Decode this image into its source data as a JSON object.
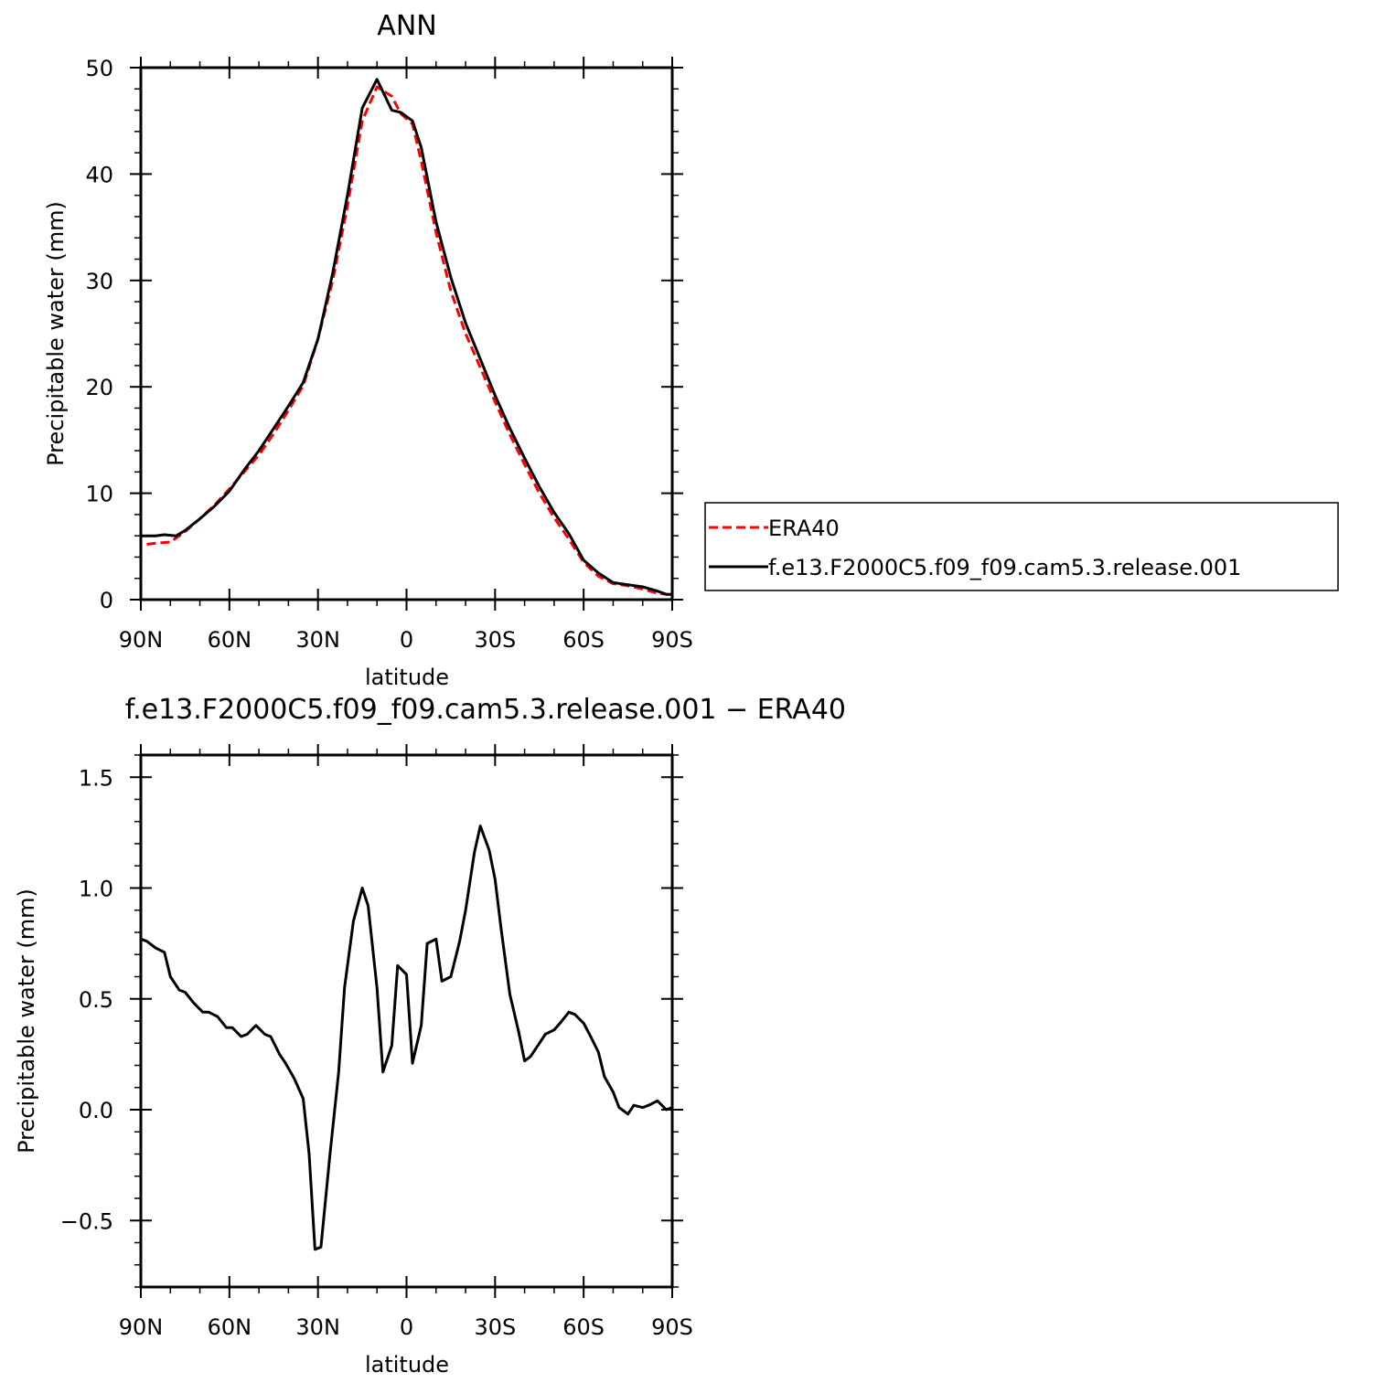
{
  "chart_data": [
    {
      "type": "line",
      "title": "ANN",
      "xlabel": "latitude",
      "ylabel": "Precipitable water (mm)",
      "xlim": [
        90,
        -90
      ],
      "ylim": [
        0,
        50
      ],
      "x_tick_values": [
        90,
        60,
        30,
        0,
        -30,
        -60,
        -90
      ],
      "x_tick_labels": [
        "90N",
        "60N",
        "30N",
        "0",
        "30S",
        "60S",
        "90S"
      ],
      "y_tick_values": [
        0,
        10,
        20,
        30,
        40,
        50
      ],
      "y_tick_labels": [
        "0",
        "10",
        "20",
        "30",
        "40",
        "50"
      ],
      "legend_position": "right",
      "series": [
        {
          "name": "ERA40",
          "color": "#ff0000",
          "dash": "dashed",
          "x": [
            88,
            85,
            80,
            75,
            70,
            65,
            60,
            55,
            50,
            45,
            40,
            35,
            30,
            25,
            20,
            15,
            10,
            5,
            2,
            -2,
            -5,
            -10,
            -15,
            -20,
            -25,
            -30,
            -35,
            -40,
            -45,
            -50,
            -55,
            -60,
            -65,
            -70,
            -75,
            -80,
            -85,
            -88,
            -90
          ],
          "y": [
            5.2,
            5.3,
            5.4,
            6.4,
            7.6,
            8.9,
            10.4,
            12.0,
            13.6,
            15.6,
            17.8,
            20.1,
            24.5,
            30.0,
            37.0,
            45.0,
            48.2,
            47.3,
            45.7,
            44.7,
            41.2,
            34.5,
            29.0,
            25.0,
            21.8,
            18.6,
            15.5,
            12.7,
            10.0,
            7.7,
            5.7,
            3.5,
            2.2,
            1.5,
            1.3,
            1.0,
            0.6,
            0.5,
            0.5
          ]
        },
        {
          "name": "f.e13.F2000C5.f09_f09.cam5.3.release.001",
          "color": "#000000",
          "dash": "solid",
          "x": [
            90,
            85,
            82,
            78,
            75,
            70,
            65,
            60,
            55,
            50,
            45,
            40,
            35,
            30,
            25,
            20,
            15,
            10,
            5,
            2,
            -2,
            -5,
            -10,
            -15,
            -20,
            -25,
            -30,
            -35,
            -40,
            -45,
            -50,
            -55,
            -60,
            -65,
            -70,
            -75,
            -80,
            -85,
            -88,
            -90
          ],
          "y": [
            6.0,
            6.0,
            6.1,
            6.0,
            6.5,
            7.6,
            8.8,
            10.2,
            12.2,
            14.0,
            16.1,
            18.2,
            20.4,
            24.5,
            30.7,
            38.0,
            46.2,
            48.9,
            46.0,
            45.8,
            45.0,
            42.5,
            35.5,
            30.3,
            26.0,
            22.6,
            19.2,
            16.1,
            13.3,
            10.6,
            8.2,
            6.2,
            3.7,
            2.5,
            1.6,
            1.4,
            1.2,
            0.8,
            0.5,
            0.5
          ]
        }
      ]
    },
    {
      "type": "line",
      "title": "f.e13.F2000C5.f09_f09.cam5.3.release.001  −  ERA40",
      "xlabel": "latitude",
      "ylabel": "Precipitable water (mm)",
      "xlim": [
        90,
        -90
      ],
      "ylim": [
        -0.8,
        1.6
      ],
      "x_tick_values": [
        90,
        60,
        30,
        0,
        -30,
        -60,
        -90
      ],
      "x_tick_labels": [
        "90N",
        "60N",
        "30N",
        "0",
        "30S",
        "60S",
        "90S"
      ],
      "y_tick_values": [
        -0.5,
        0,
        0.5,
        1.0,
        1.5
      ],
      "y_tick_labels": [
        "−0.5",
        "0.0",
        "0.5",
        "1.0",
        "1.5"
      ],
      "series": [
        {
          "name": "",
          "color": "#000000",
          "dash": "solid",
          "x": [
            90,
            88,
            85,
            82,
            80,
            77,
            75,
            72,
            69,
            67,
            64,
            61,
            59,
            56,
            54,
            51,
            48,
            46,
            43,
            41,
            38,
            35,
            33,
            31,
            29,
            26,
            23,
            21,
            18,
            15,
            13,
            10,
            8,
            5,
            3,
            0,
            -2,
            -5,
            -7,
            -10,
            -12,
            -15,
            -18,
            -20,
            -23,
            -25,
            -28,
            -30,
            -32,
            -35,
            -38,
            -40,
            -42,
            -45,
            -47,
            -50,
            -52,
            -55,
            -57,
            -60,
            -62,
            -65,
            -67,
            -70,
            -72,
            -75,
            -77,
            -80,
            -82,
            -85,
            -88,
            -90
          ],
          "y": [
            0.77,
            0.76,
            0.73,
            0.71,
            0.6,
            0.54,
            0.53,
            0.48,
            0.44,
            0.44,
            0.42,
            0.37,
            0.37,
            0.33,
            0.34,
            0.38,
            0.34,
            0.33,
            0.25,
            0.21,
            0.14,
            0.05,
            -0.2,
            -0.63,
            -0.62,
            -0.21,
            0.17,
            0.55,
            0.85,
            1.0,
            0.92,
            0.55,
            0.17,
            0.29,
            0.65,
            0.61,
            0.21,
            0.38,
            0.75,
            0.77,
            0.58,
            0.6,
            0.76,
            0.9,
            1.16,
            1.28,
            1.17,
            1.04,
            0.82,
            0.52,
            0.35,
            0.22,
            0.24,
            0.3,
            0.34,
            0.36,
            0.39,
            0.44,
            0.43,
            0.39,
            0.34,
            0.26,
            0.15,
            0.08,
            0.01,
            -0.02,
            0.02,
            0.01,
            0.02,
            0.04,
            0.0,
            0.01
          ]
        }
      ]
    }
  ]
}
